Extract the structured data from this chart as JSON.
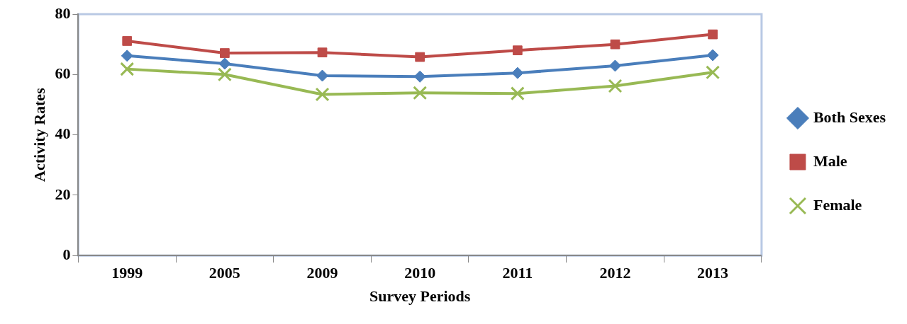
{
  "chart_data": {
    "type": "line",
    "xlabel": "Survey Periods",
    "ylabel": "Activity Rates",
    "categories": [
      "1999",
      "2005",
      "2009",
      "2010",
      "2011",
      "2012",
      "2013"
    ],
    "ylim": [
      0,
      80
    ],
    "yticks": [
      0,
      20,
      40,
      60,
      80
    ],
    "grid": false,
    "legend": "right",
    "series": [
      {
        "name": "Both Sexes",
        "color": "#4a7ebb",
        "marker": "diamond",
        "values": [
          66.2,
          63.6,
          59.6,
          59.3,
          60.5,
          62.9,
          66.4
        ]
      },
      {
        "name": "Male",
        "color": "#be4b48",
        "marker": "square",
        "values": [
          71.1,
          67.1,
          67.3,
          65.8,
          68.0,
          70.0,
          73.3
        ]
      },
      {
        "name": "Female",
        "color": "#98b954",
        "marker": "cross",
        "values": [
          61.8,
          60.0,
          53.4,
          53.9,
          53.7,
          56.2,
          60.7
        ]
      }
    ]
  }
}
